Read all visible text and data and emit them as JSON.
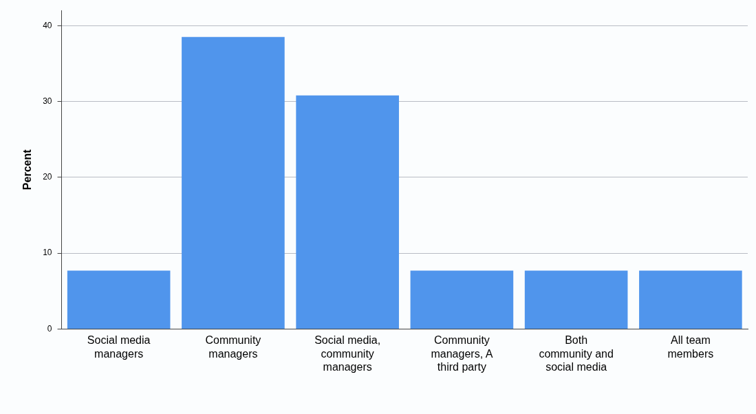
{
  "chart_data": {
    "type": "bar",
    "ylabel": "Percent",
    "categories": [
      "Social media managers",
      "Community managers",
      "Social media, community managers",
      "Community managers, A third party",
      "Both community and social media",
      "All team members"
    ],
    "values": [
      7.7,
      38.5,
      30.8,
      7.7,
      7.7,
      7.7
    ],
    "color": "#5095ec",
    "ylim": [
      0,
      42
    ],
    "yticks": [
      0,
      10,
      20,
      30,
      40
    ],
    "grid": "y",
    "legend": false
  }
}
